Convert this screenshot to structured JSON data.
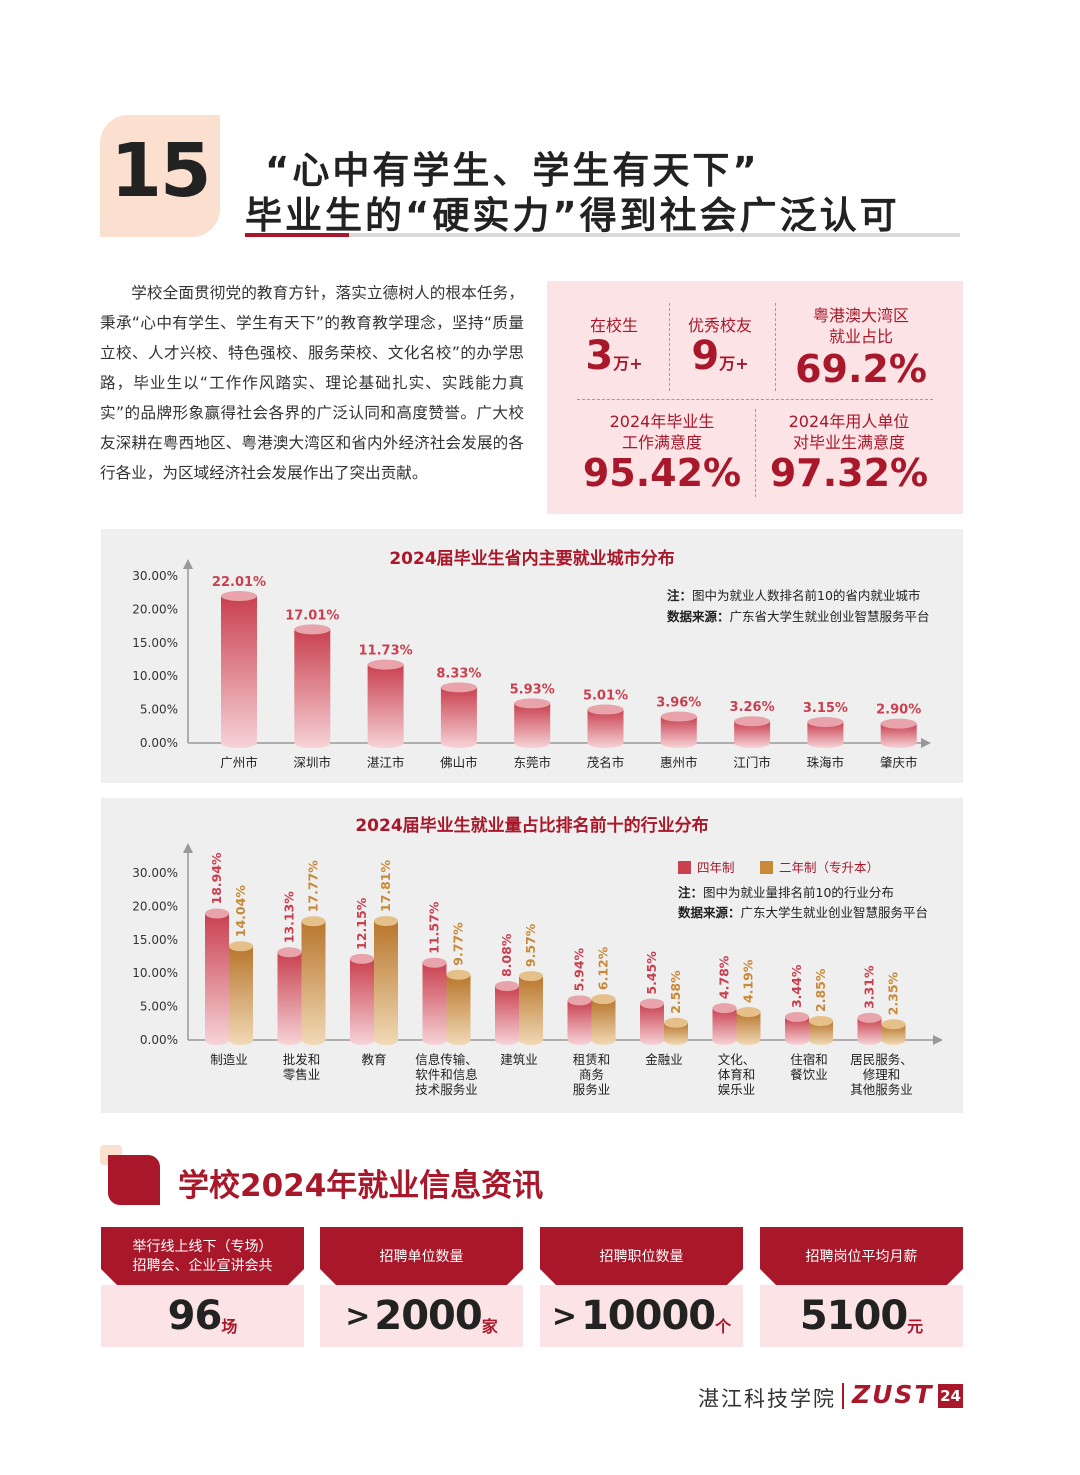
{
  "header": {
    "section_number": "15",
    "title_line1": "“心中有学生、学生有天下”",
    "title_line2": "毕业生的“硬实力”得到社会广泛认可"
  },
  "intro": "学校全面贯彻党的教育方针，落实立德树人的根本任务，秉承“心中有学生、学生有天下”的教育教学理念，坚持“质量立校、人才兴校、特色强校、服务荣校、文化名校”的办学思路，毕业生以“工作作风踏实、理论基础扎实、实践能力真实”的品牌形象赢得社会各界的广泛认同和高度赞誉。广大校友深耕在粤西地区、粤港澳大湾区和省内外经济社会发展的各行各业，为区域经济社会发展作出了突出贡献。",
  "stats": {
    "students_label": "在校生",
    "students_value": "3",
    "students_unit": "万+",
    "alumni_label": "优秀校友",
    "alumni_value": "9",
    "alumni_unit": "万+",
    "gba_label_1": "粤港澳大湾区",
    "gba_label_2": "就业占比",
    "gba_value": "69.2%",
    "grad_label_1": "2024年毕业生",
    "grad_label_2": "工作满意度",
    "grad_value": "95.42%",
    "employer_label_1": "2024年用人单位",
    "employer_label_2": "对毕业生满意度",
    "employer_value": "97.32%"
  },
  "chart1_note": {
    "note_label": "注：",
    "note_text": "图中为就业人数排名前10的省内就业城市",
    "source_label": "数据来源：",
    "source_text": "广东省大学生就业创业智慧服务平台"
  },
  "chart2_note": {
    "note_label": "注：",
    "note_text": "图中为就业量排名前10的行业分布",
    "source_label": "数据来源：",
    "source_text": "广东大学生就业创业智慧服务平台"
  },
  "chart_data": [
    {
      "type": "bar",
      "title": "2024届毕业生省内主要就业城市分布",
      "categories": [
        "广州市",
        "深圳市",
        "湛江市",
        "佛山市",
        "东莞市",
        "茂名市",
        "惠州市",
        "江门市",
        "珠海市",
        "肇庆市"
      ],
      "values": [
        22.01,
        17.01,
        11.73,
        8.33,
        5.93,
        5.01,
        3.96,
        3.26,
        3.15,
        2.9
      ],
      "value_labels": [
        "22.01%",
        "17.01%",
        "11.73%",
        "8.33%",
        "5.93%",
        "5.01%",
        "3.96%",
        "3.26%",
        "3.15%",
        "2.90%"
      ],
      "yticks": [
        "0.00%",
        "5.00%",
        "10.00%",
        "15.00%",
        "20.00%",
        "30.00%"
      ],
      "ylim": [
        0,
        25
      ],
      "color": "#c9404f"
    },
    {
      "type": "bar",
      "title": "2024届毕业生就业量占比排名前十的行业分布",
      "categories": [
        "制造业",
        "批发和\n零售业",
        "教育",
        "信息传输、\n软件和信息\n技术服务业",
        "建筑业",
        "租赁和\n商务\n服务业",
        "金融业",
        "文化、\n体育和\n娱乐业",
        "住宿和\n餐饮业",
        "居民服务、\n修理和\n其他服务业"
      ],
      "series": [
        {
          "name": "四年制",
          "color": "#c9404f",
          "values": [
            18.94,
            13.13,
            12.15,
            11.57,
            8.08,
            5.94,
            5.45,
            4.78,
            3.44,
            3.31
          ],
          "value_labels": [
            "18.94%",
            "13.13%",
            "12.15%",
            "11.57%",
            "8.08%",
            "5.94%",
            "5.45%",
            "4.78%",
            "3.44%",
            "3.31%"
          ]
        },
        {
          "name": "二年制（专升本）",
          "color": "#c88a3a",
          "values": [
            14.04,
            17.77,
            17.81,
            9.77,
            9.57,
            6.12,
            2.58,
            4.19,
            2.85,
            2.35
          ],
          "value_labels": [
            "14.04%",
            "17.77%",
            "17.81%",
            "9.77%",
            "9.57%",
            "6.12%",
            "2.58%",
            "4.19%",
            "2.85%",
            "2.35%"
          ]
        }
      ],
      "yticks": [
        "0.00%",
        "5.00%",
        "10.00%",
        "15.00%",
        "20.00%",
        "30.00%"
      ],
      "ylim": [
        0,
        25
      ],
      "legend": "top-right"
    }
  ],
  "section2": {
    "title": "学校2024年就业信息资讯"
  },
  "info_cards": [
    {
      "head": "举行线上线下（专场）\n招聘会、企业宣讲会共",
      "prefix": "",
      "value": "96",
      "unit": "场"
    },
    {
      "head": "招聘单位数量",
      "prefix": ">",
      "value": "2000",
      "unit": "家"
    },
    {
      "head": "招聘职位数量",
      "prefix": ">",
      "value": "10000",
      "unit": "个"
    },
    {
      "head": "招聘岗位平均月薪",
      "prefix": "",
      "value": "5100",
      "unit": "元"
    }
  ],
  "footer": {
    "school_name": "湛江科技学院",
    "logo": "ZUST",
    "page": "24"
  }
}
